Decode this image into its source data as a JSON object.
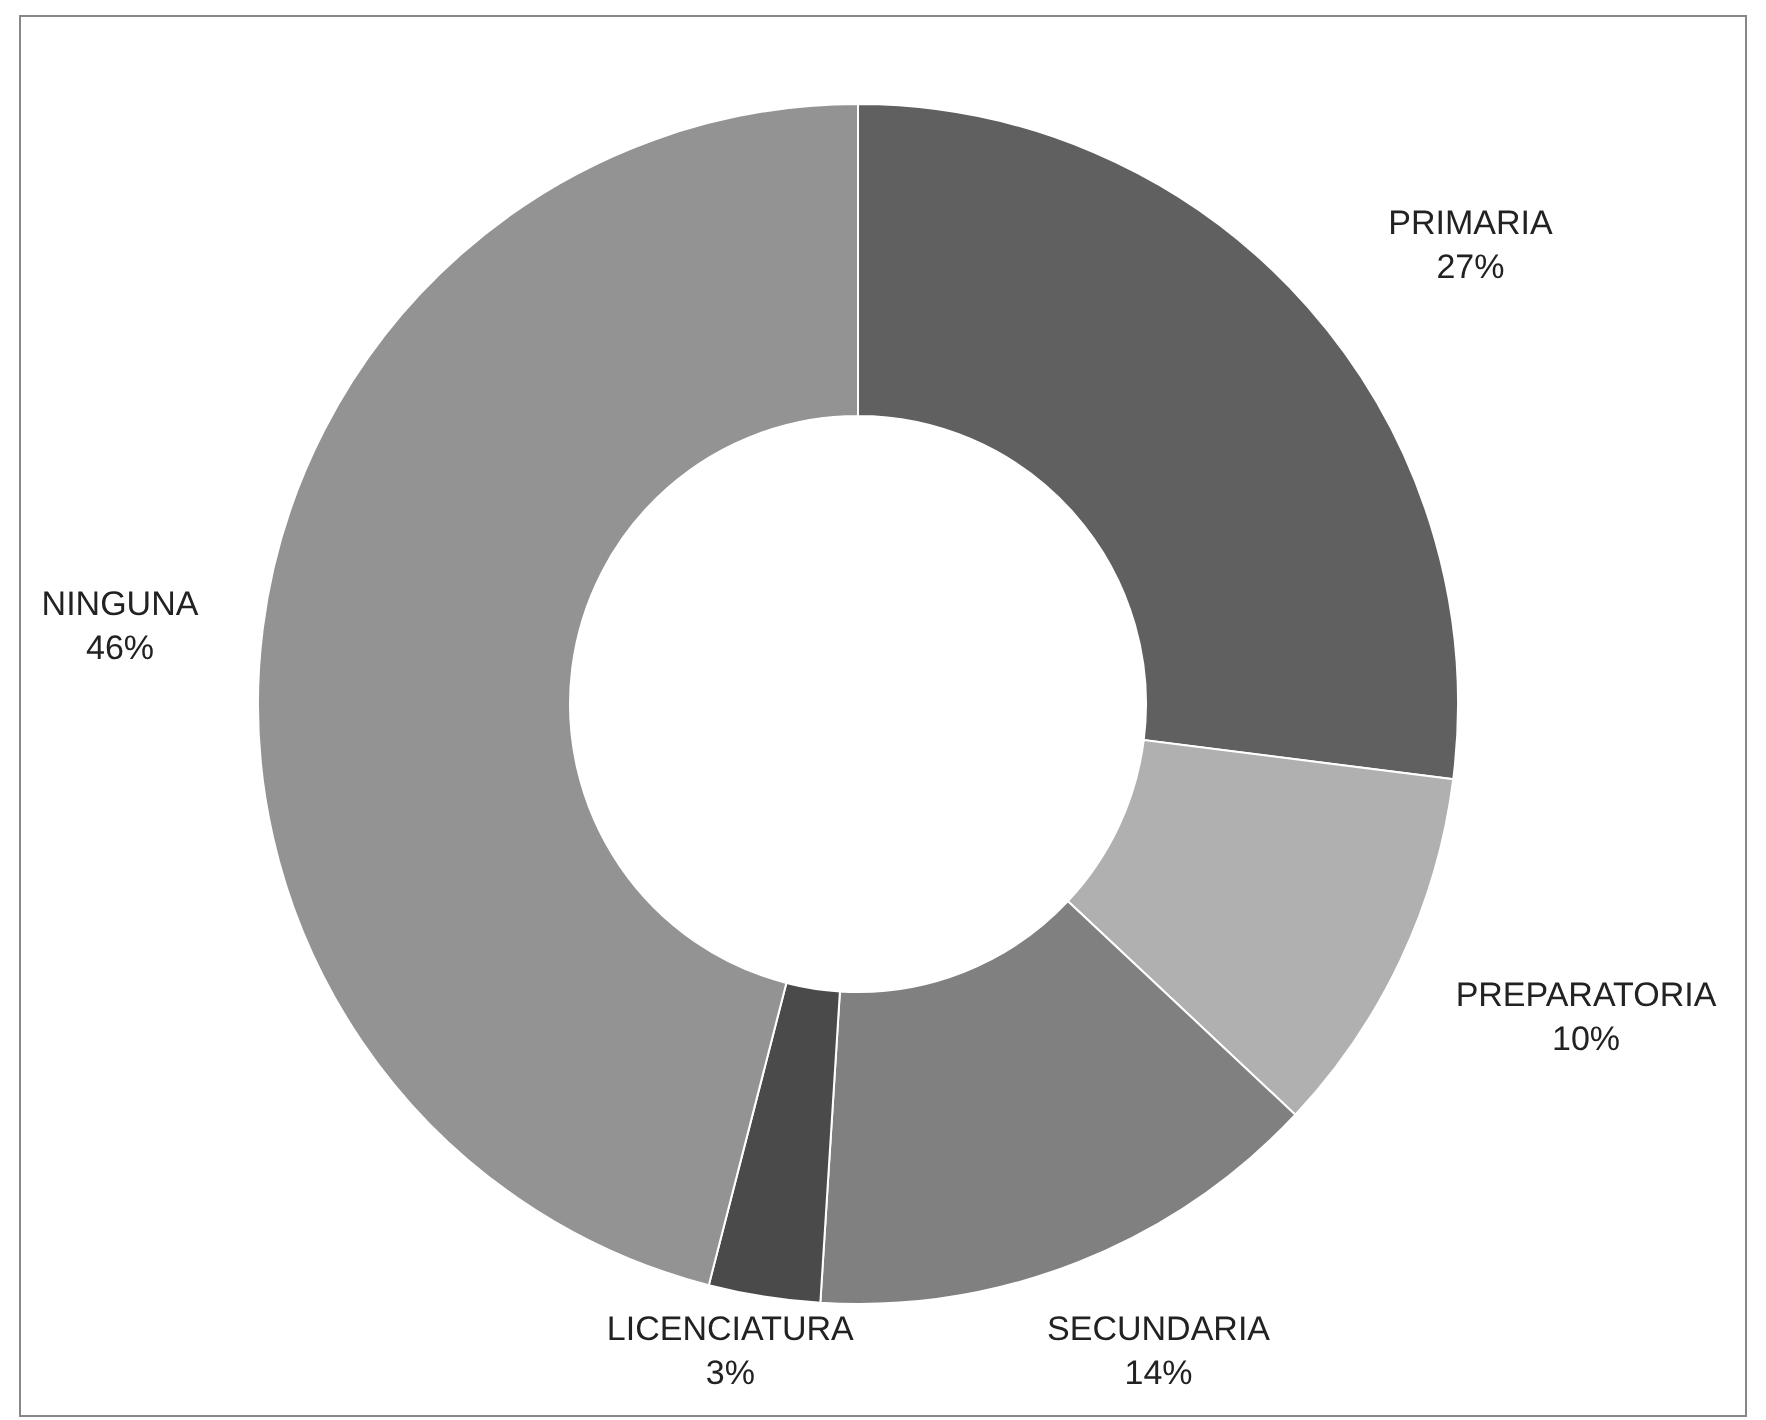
{
  "chart_data": {
    "type": "donut",
    "categories": [
      "PRIMARIA",
      "PREPARATORIA",
      "SECUNDARIA",
      "LICENCIATURA",
      "NINGUNA"
    ],
    "values": [
      27,
      10,
      14,
      3,
      46
    ],
    "value_labels": [
      "27%",
      "10%",
      "14%",
      "3%",
      "46%"
    ],
    "colors": [
      "#606060",
      "#b0b0b0",
      "#808080",
      "#4a4a4a",
      "#939393"
    ]
  }
}
